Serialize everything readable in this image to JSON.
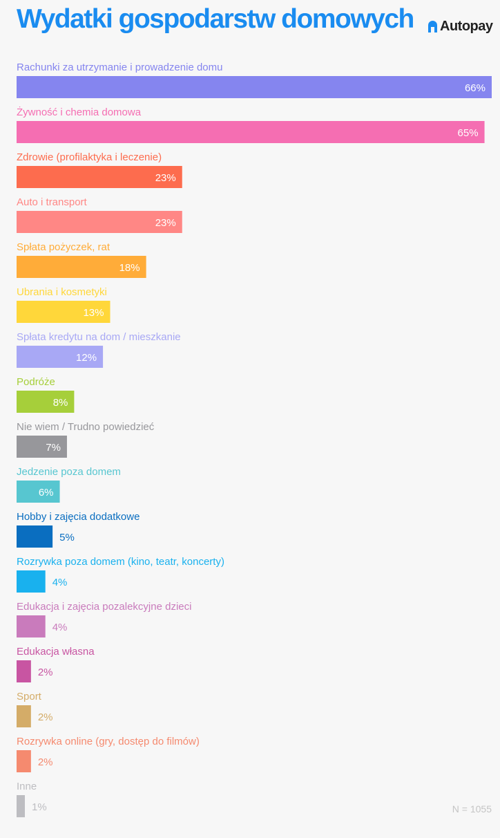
{
  "header": {
    "title": "Wydatki gospodarstw domowych",
    "brand": "Autopay",
    "brand_color": "#1a8cf0"
  },
  "footnote": "N = 1055",
  "chart_data": {
    "type": "bar",
    "orientation": "horizontal",
    "title": "Wydatki gospodarstw domowych",
    "xlim": [
      0,
      66
    ],
    "grid": false,
    "legend": "none",
    "value_suffix": "%",
    "categories": [
      "Rachunki za utrzymanie i prowadzenie domu",
      "Żywność i chemia domowa",
      "Zdrowie (profilaktyka i leczenie)",
      "Auto i transport",
      "Spłata pożyczek, rat",
      "Ubrania i kosmetyki",
      "Spłata kredytu na dom / mieszkanie",
      "Podróże",
      "Nie wiem / Trudno powiedzieć",
      "Jedzenie poza domem",
      "Hobby i zajęcia dodatkowe",
      "Rozrywka poza domem (kino, teatr, koncerty)",
      "Edukacja i zajęcia pozalekcyjne dzieci",
      "Edukacja własna",
      "Sport",
      "Rozrywka online (gry, dostęp do filmów)",
      "Inne"
    ],
    "values": [
      66,
      65,
      23,
      23,
      18,
      13,
      12,
      8,
      7,
      6,
      5,
      4,
      4,
      2,
      2,
      2,
      1
    ],
    "colors": [
      "#8585ef",
      "#f56eb2",
      "#fd6c4e",
      "#ff8785",
      "#ffac39",
      "#ffd73a",
      "#a8a8f5",
      "#a6cf3a",
      "#97979b",
      "#57c6d0",
      "#0a6ec0",
      "#19b1ee",
      "#c97bbc",
      "#c855a2",
      "#d4ac68",
      "#f58a6f",
      "#bdbdc1"
    ]
  }
}
